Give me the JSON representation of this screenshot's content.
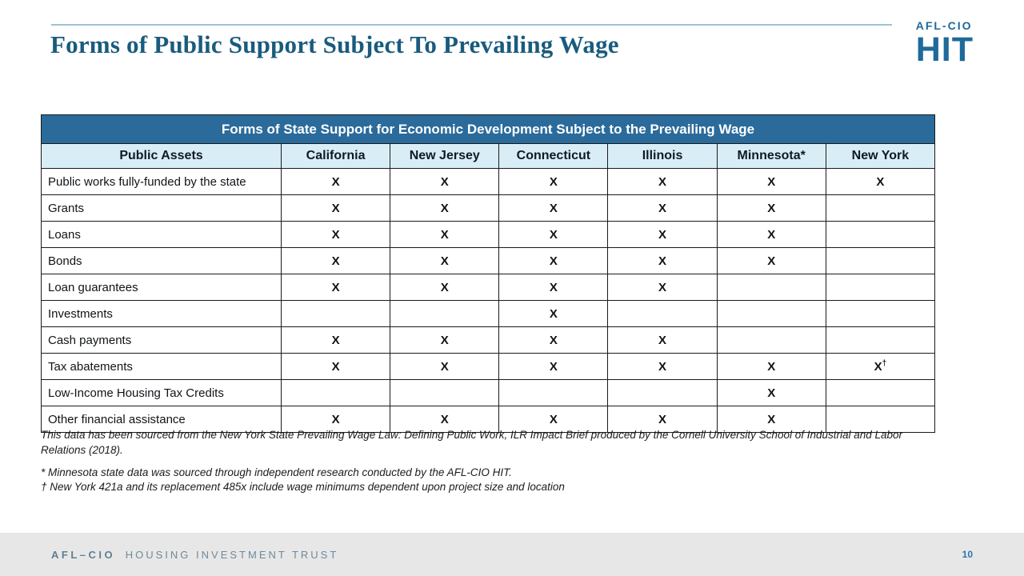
{
  "slide": {
    "title": "Forms of Public Support Subject To Prevailing Wage",
    "page_number": "10"
  },
  "logo": {
    "top": "AFL-CIO",
    "main": "HIT"
  },
  "table": {
    "title": "Forms of State Support for Economic Development Subject to the Prevailing Wage",
    "columns": [
      "Public Assets",
      "California",
      "New Jersey",
      "Connecticut",
      "Illinois",
      "Minnesota*",
      "New York"
    ],
    "rows": [
      {
        "label": "Public works fully-funded by the state",
        "cells": [
          "X",
          "X",
          "X",
          "X",
          "X",
          "X"
        ]
      },
      {
        "label": "Grants",
        "cells": [
          "X",
          "X",
          "X",
          "X",
          "X",
          ""
        ]
      },
      {
        "label": "Loans",
        "cells": [
          "X",
          "X",
          "X",
          "X",
          "X",
          ""
        ]
      },
      {
        "label": "Bonds",
        "cells": [
          "X",
          "X",
          "X",
          "X",
          "X",
          ""
        ]
      },
      {
        "label": "Loan guarantees",
        "cells": [
          "X",
          "X",
          "X",
          "X",
          "",
          ""
        ]
      },
      {
        "label": "Investments",
        "cells": [
          "",
          "",
          "X",
          "",
          "",
          ""
        ]
      },
      {
        "label": "Cash payments",
        "cells": [
          "X",
          "X",
          "X",
          "X",
          "",
          ""
        ]
      },
      {
        "label": "Tax abatements",
        "cells": [
          "X",
          "X",
          "X",
          "X",
          "X",
          "X†"
        ]
      },
      {
        "label": "Low-Income Housing Tax Credits",
        "cells": [
          "",
          "",
          "",
          "",
          "X",
          ""
        ]
      },
      {
        "label": "Other financial assistance",
        "cells": [
          "X",
          "X",
          "X",
          "X",
          "X",
          ""
        ]
      }
    ]
  },
  "notes": {
    "source": "This data has been sourced from the New York State Prevailing Wage Law: Defining Public Work, ILR Impact Brief produced by the Cornell University School of Industrial and Labor Relations (2018).",
    "asterisk": "* Minnesota state data was sourced through independent research conducted by the AFL-CIO HIT.",
    "dagger": "† New York 421a and its replacement 485x include wage minimums dependent upon project size and location"
  },
  "footer": {
    "brand_bold": "AFL–CIO",
    "brand_rest": "HOUSING INVESTMENT TRUST"
  },
  "colors": {
    "title_blue": "#1a5b7e",
    "table_header_band": "#2a6b9b",
    "column_header_blue": "#d9edf7",
    "logo_blue": "#1e6a99",
    "footer_background": "#e8e7e7",
    "footer_text": "#6c8a9d",
    "page_number_blue": "#2e74b5"
  }
}
